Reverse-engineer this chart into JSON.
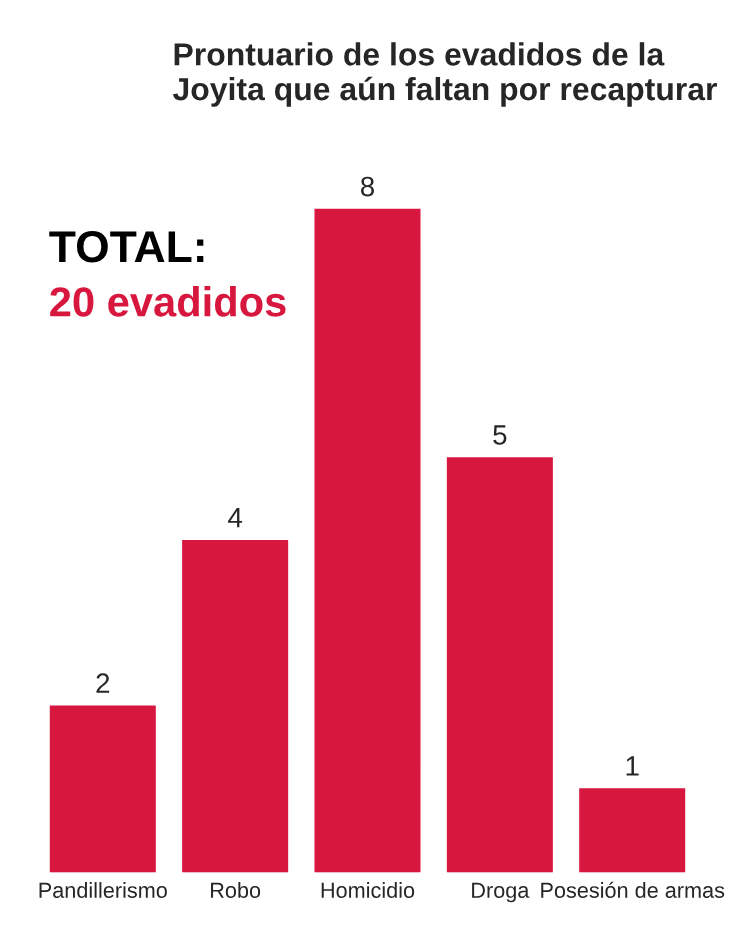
{
  "chart_data": {
    "type": "bar",
    "title": "Prontuario de los evadidos de la Joyita que aún faltan por recapturar",
    "categories": [
      "Pandillerismo",
      "Robo",
      "Homicidio",
      "Droga",
      "Posesión de armas"
    ],
    "values": [
      2,
      4,
      8,
      5,
      1
    ],
    "color": "#d8173f",
    "data_labels": true,
    "grid": false,
    "legend": false,
    "annotations": [
      "TOTAL:",
      "20 evadidos"
    ]
  }
}
